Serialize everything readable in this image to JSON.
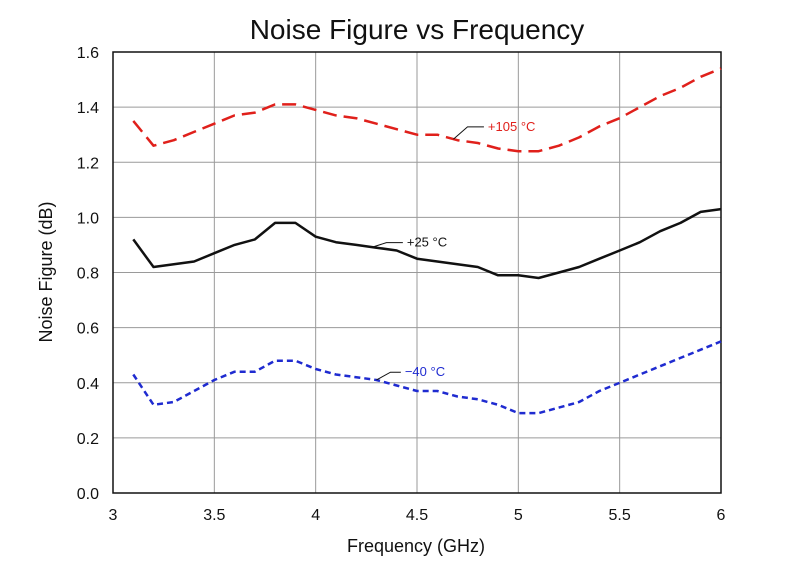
{
  "chart_data": {
    "type": "line",
    "title": "Noise Figure vs Frequency",
    "xlabel": "Frequency (GHz)",
    "ylabel": "Noise Figure (dB)",
    "xlim": [
      3,
      6
    ],
    "ylim": [
      0,
      1.6
    ],
    "x_ticks": [
      "3",
      "3.5",
      "4",
      "4.5",
      "5",
      "5.5",
      "6"
    ],
    "y_ticks": [
      "0.0",
      "0.2",
      "0.4",
      "0.6",
      "0.8",
      "1.0",
      "1.2",
      "1.4",
      "1.6"
    ],
    "grid": true,
    "series": [
      {
        "name": "+105 °C",
        "color": "#e0201b",
        "style": "dashed",
        "points": [
          [
            3.1,
            1.35
          ],
          [
            3.2,
            1.26
          ],
          [
            3.3,
            1.28
          ],
          [
            3.4,
            1.31
          ],
          [
            3.5,
            1.34
          ],
          [
            3.6,
            1.37
          ],
          [
            3.7,
            1.38
          ],
          [
            3.8,
            1.41
          ],
          [
            3.9,
            1.41
          ],
          [
            4.0,
            1.39
          ],
          [
            4.1,
            1.37
          ],
          [
            4.2,
            1.36
          ],
          [
            4.3,
            1.34
          ],
          [
            4.4,
            1.32
          ],
          [
            4.5,
            1.3
          ],
          [
            4.6,
            1.3
          ],
          [
            4.7,
            1.28
          ],
          [
            4.8,
            1.27
          ],
          [
            4.9,
            1.25
          ],
          [
            5.0,
            1.24
          ],
          [
            5.1,
            1.24
          ],
          [
            5.2,
            1.26
          ],
          [
            5.3,
            1.29
          ],
          [
            5.4,
            1.33
          ],
          [
            5.5,
            1.36
          ],
          [
            5.6,
            1.4
          ],
          [
            5.7,
            1.44
          ],
          [
            5.8,
            1.47
          ],
          [
            5.9,
            1.51
          ],
          [
            6.0,
            1.54
          ]
        ]
      },
      {
        "name": "+25 °C",
        "color": "#111111",
        "style": "solid",
        "points": [
          [
            3.1,
            0.92
          ],
          [
            3.2,
            0.82
          ],
          [
            3.3,
            0.83
          ],
          [
            3.4,
            0.84
          ],
          [
            3.5,
            0.87
          ],
          [
            3.6,
            0.9
          ],
          [
            3.7,
            0.92
          ],
          [
            3.8,
            0.98
          ],
          [
            3.9,
            0.98
          ],
          [
            4.0,
            0.93
          ],
          [
            4.1,
            0.91
          ],
          [
            4.2,
            0.9
          ],
          [
            4.3,
            0.89
          ],
          [
            4.4,
            0.88
          ],
          [
            4.5,
            0.85
          ],
          [
            4.6,
            0.84
          ],
          [
            4.7,
            0.83
          ],
          [
            4.8,
            0.82
          ],
          [
            4.9,
            0.79
          ],
          [
            5.0,
            0.79
          ],
          [
            5.1,
            0.78
          ],
          [
            5.2,
            0.8
          ],
          [
            5.3,
            0.82
          ],
          [
            5.4,
            0.85
          ],
          [
            5.5,
            0.88
          ],
          [
            5.6,
            0.91
          ],
          [
            5.7,
            0.95
          ],
          [
            5.8,
            0.98
          ],
          [
            5.9,
            1.02
          ],
          [
            6.0,
            1.03
          ]
        ]
      },
      {
        "name": "−40 °C",
        "color": "#1f2bd0",
        "style": "dotted",
        "points": [
          [
            3.1,
            0.43
          ],
          [
            3.2,
            0.32
          ],
          [
            3.3,
            0.33
          ],
          [
            3.4,
            0.37
          ],
          [
            3.5,
            0.41
          ],
          [
            3.6,
            0.44
          ],
          [
            3.7,
            0.44
          ],
          [
            3.8,
            0.48
          ],
          [
            3.9,
            0.48
          ],
          [
            4.0,
            0.45
          ],
          [
            4.1,
            0.43
          ],
          [
            4.2,
            0.42
          ],
          [
            4.3,
            0.41
          ],
          [
            4.4,
            0.39
          ],
          [
            4.5,
            0.37
          ],
          [
            4.6,
            0.37
          ],
          [
            4.7,
            0.35
          ],
          [
            4.8,
            0.34
          ],
          [
            4.9,
            0.32
          ],
          [
            5.0,
            0.29
          ],
          [
            5.1,
            0.29
          ],
          [
            5.2,
            0.31
          ],
          [
            5.3,
            0.33
          ],
          [
            5.4,
            0.37
          ],
          [
            5.5,
            0.4
          ],
          [
            5.6,
            0.43
          ],
          [
            5.7,
            0.46
          ],
          [
            5.8,
            0.49
          ],
          [
            5.9,
            0.52
          ],
          [
            6.0,
            0.55
          ]
        ]
      }
    ],
    "annotations": [
      {
        "text": "+105 °C",
        "series": 0,
        "at_x": 4.68,
        "label_x": 4.85,
        "label_y": 1.35
      },
      {
        "text": "+25 °C",
        "series": 1,
        "at_x": 4.28,
        "label_x": 4.45,
        "label_y": 0.93
      },
      {
        "text": "−40 °C",
        "series": 2,
        "at_x": 4.3,
        "label_x": 4.44,
        "label_y": 0.46
      }
    ]
  }
}
